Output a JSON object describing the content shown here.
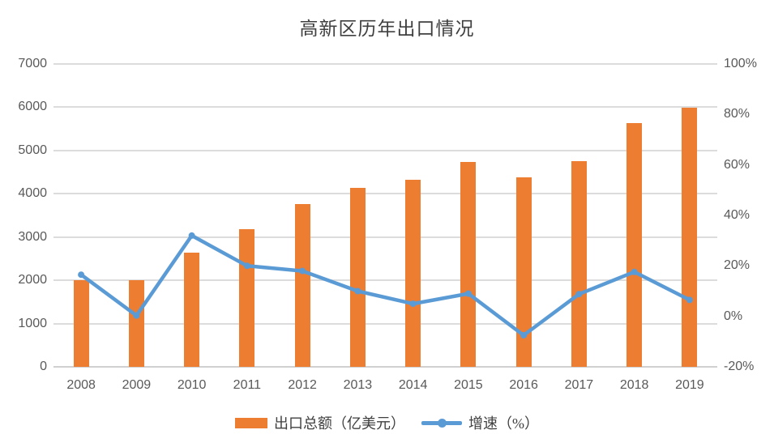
{
  "chart_data": {
    "type": "bar",
    "title": "高新区历年出口情况",
    "categories": [
      "2008",
      "2009",
      "2010",
      "2011",
      "2012",
      "2013",
      "2014",
      "2015",
      "2016",
      "2017",
      "2018",
      "2019"
    ],
    "series": [
      {
        "name": "出口总额（亿美元）",
        "type": "bar",
        "axis": "left",
        "color": "#ED7D31",
        "values": [
          2000,
          2000,
          2640,
          3180,
          3760,
          4130,
          4330,
          4730,
          4380,
          4760,
          5630,
          5980
        ]
      },
      {
        "name": "增速（%）",
        "type": "line",
        "axis": "right",
        "color": "#5B9BD5",
        "values": [
          16.5,
          0.3,
          32,
          20,
          18,
          10,
          5,
          9,
          -7.5,
          8.8,
          17.6,
          6.5
        ]
      }
    ],
    "left_axis": {
      "min": 0,
      "max": 7000,
      "step": 1000,
      "tick_labels": [
        "0",
        "1000",
        "2000",
        "3000",
        "4000",
        "5000",
        "6000",
        "7000"
      ]
    },
    "right_axis": {
      "min": -20,
      "max": 100,
      "step": 20,
      "tick_labels": [
        "-20%",
        "0%",
        "20%",
        "40%",
        "60%",
        "80%",
        "100%"
      ]
    },
    "grid": true,
    "legend_position": "bottom"
  },
  "colors": {
    "bar": "#ED7D31",
    "line": "#5B9BD5",
    "gridline": "#DCDCDC",
    "axis_line": "#D0D0D0",
    "tick_text": "#595959",
    "title_text": "#404040",
    "background": "#FFFFFF"
  }
}
